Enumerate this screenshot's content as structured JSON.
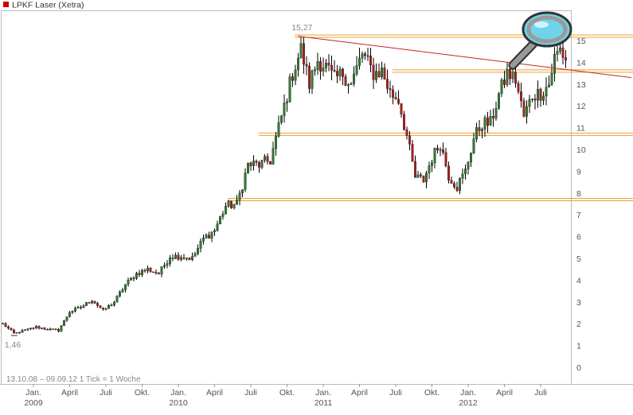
{
  "header": {
    "title": "LPKF Laser (Xetra)"
  },
  "colors": {
    "title_marker": "#cc0000",
    "up_candle": "#2f7d2f",
    "down_candle": "#b01c1c",
    "wick": "#000000",
    "support_line": "#e8a030",
    "trend_line": "#cc2222",
    "grid": "#cccccc",
    "label_text": "#666666"
  },
  "footer": {
    "range_text": "13.10.08 – 09.09.12   1 Tick = 1 Woche"
  },
  "chart_data": {
    "type": "candlestick",
    "title": "LPKF Laser (Xetra)",
    "ylim": [
      -0.5,
      15.8
    ],
    "y_ticks": [
      0,
      1,
      2,
      3,
      4,
      5,
      6,
      7,
      8,
      9,
      10,
      11,
      12,
      13,
      14,
      15
    ],
    "grid": false,
    "x_ticks": [
      {
        "label": "Jan.",
        "year": "2009",
        "week": 11.5
      },
      {
        "label": "April",
        "year": "",
        "week": 24.5
      },
      {
        "label": "Juli",
        "year": "",
        "week": 37.5
      },
      {
        "label": "Okt.",
        "year": "",
        "week": 50.5
      },
      {
        "label": "Jan.",
        "year": "2010",
        "week": 63.5
      },
      {
        "label": "April",
        "year": "",
        "week": 76.5
      },
      {
        "label": "Juli",
        "year": "",
        "week": 89.5
      },
      {
        "label": "Okt.",
        "year": "",
        "week": 102.5
      },
      {
        "label": "Jan.",
        "year": "2011",
        "week": 115.5
      },
      {
        "label": "April",
        "year": "",
        "week": 128.5
      },
      {
        "label": "Juli",
        "year": "",
        "week": 141.5
      },
      {
        "label": "Okt.",
        "year": "",
        "week": 154.5
      },
      {
        "label": "Jan.",
        "year": "2012",
        "week": 167.5
      },
      {
        "label": "April",
        "year": "",
        "week": 180.5
      },
      {
        "label": "Juli",
        "year": "",
        "week": 193.5
      }
    ],
    "annotations": [
      {
        "text": "15,27",
        "week": 107,
        "value": 15.27
      },
      {
        "text": "1,46",
        "week": 4,
        "value": 1.46
      }
    ],
    "support_levels": [
      15.2,
      13.6,
      10.7,
      7.7
    ],
    "trend_line": {
      "from": {
        "week": 107,
        "value": 15.2
      },
      "to": {
        "week": 226,
        "value": 13.3
      }
    },
    "anchors": [
      [
        0,
        2.0
      ],
      [
        4,
        1.55
      ],
      [
        8,
        1.7
      ],
      [
        12,
        1.85
      ],
      [
        16,
        1.75
      ],
      [
        20,
        1.7
      ],
      [
        24,
        2.55
      ],
      [
        28,
        2.75
      ],
      [
        32,
        3.1
      ],
      [
        36,
        2.6
      ],
      [
        40,
        3.0
      ],
      [
        44,
        3.8
      ],
      [
        48,
        4.3
      ],
      [
        52,
        4.5
      ],
      [
        56,
        4.3
      ],
      [
        60,
        5.1
      ],
      [
        64,
        5.1
      ],
      [
        68,
        5.0
      ],
      [
        72,
        5.9
      ],
      [
        76,
        6.3
      ],
      [
        80,
        7.4
      ],
      [
        84,
        7.5
      ],
      [
        88,
        9.3
      ],
      [
        92,
        9.3
      ],
      [
        96,
        9.5
      ],
      [
        100,
        11.5
      ],
      [
        104,
        13.5
      ],
      [
        107,
        14.6
      ],
      [
        110,
        13.0
      ],
      [
        113,
        14.1
      ],
      [
        116,
        13.8
      ],
      [
        119,
        13.2
      ],
      [
        122,
        13.5
      ],
      [
        125,
        13.0
      ],
      [
        129,
        14.4
      ],
      [
        133,
        13.5
      ],
      [
        136,
        13.6
      ],
      [
        139,
        12.6
      ],
      [
        142,
        12.3
      ],
      [
        145,
        10.6
      ],
      [
        148,
        8.7
      ],
      [
        151,
        8.6
      ],
      [
        154,
        9.6
      ],
      [
        157,
        10.3
      ],
      [
        160,
        8.8
      ],
      [
        163,
        8.3
      ],
      [
        166,
        9.0
      ],
      [
        169,
        10.5
      ],
      [
        172,
        11.2
      ],
      [
        175,
        11.2
      ],
      [
        178,
        12.5
      ],
      [
        181,
        13.5
      ],
      [
        184,
        13.2
      ],
      [
        187,
        11.5
      ],
      [
        190,
        12.5
      ],
      [
        193,
        12.6
      ],
      [
        196,
        13.0
      ],
      [
        198,
        14.2
      ],
      [
        200,
        14.6
      ],
      [
        202,
        14.1
      ]
    ]
  }
}
